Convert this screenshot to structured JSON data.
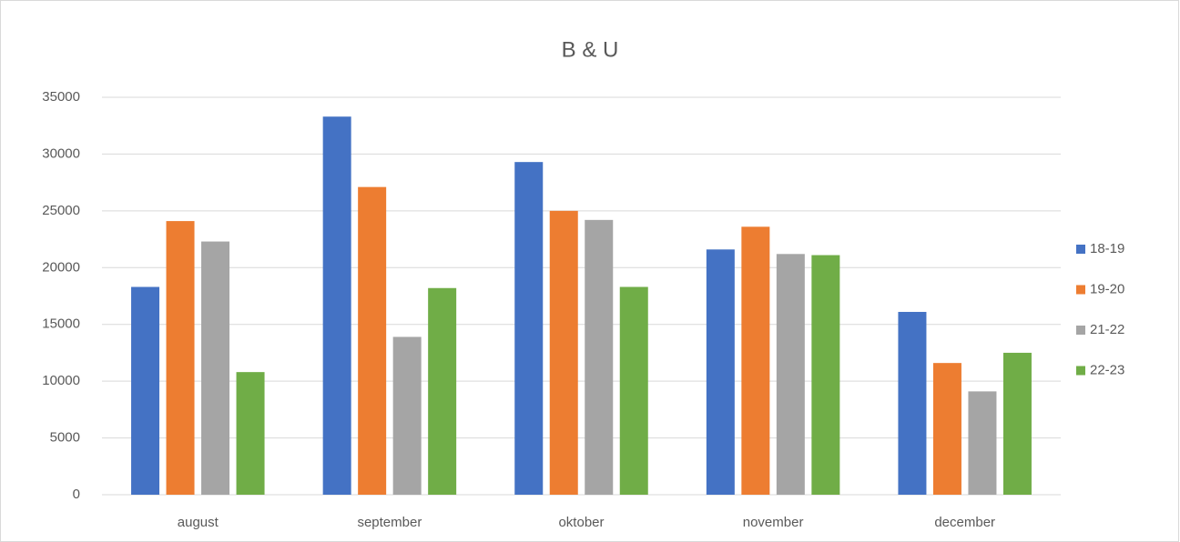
{
  "chart_data": {
    "type": "bar",
    "title": "B & U",
    "categories": [
      "august",
      "september",
      "oktober",
      "november",
      "december"
    ],
    "series": [
      {
        "name": "18-19",
        "color": "#4472c4",
        "values": [
          18300,
          33300,
          29300,
          21600,
          16100
        ]
      },
      {
        "name": "19-20",
        "color": "#ed7d31",
        "values": [
          24100,
          27100,
          25000,
          23600,
          11600
        ]
      },
      {
        "name": "21-22",
        "color": "#a5a5a5",
        "values": [
          22300,
          13900,
          24200,
          21200,
          9100
        ]
      },
      {
        "name": "22-23",
        "color": "#70ad47",
        "values": [
          10800,
          18200,
          18300,
          21100,
          12500
        ]
      }
    ],
    "ylim": [
      0,
      35000
    ],
    "yticks": [
      0,
      5000,
      10000,
      15000,
      20000,
      25000,
      30000,
      35000
    ],
    "grid": true,
    "legend": "right"
  }
}
